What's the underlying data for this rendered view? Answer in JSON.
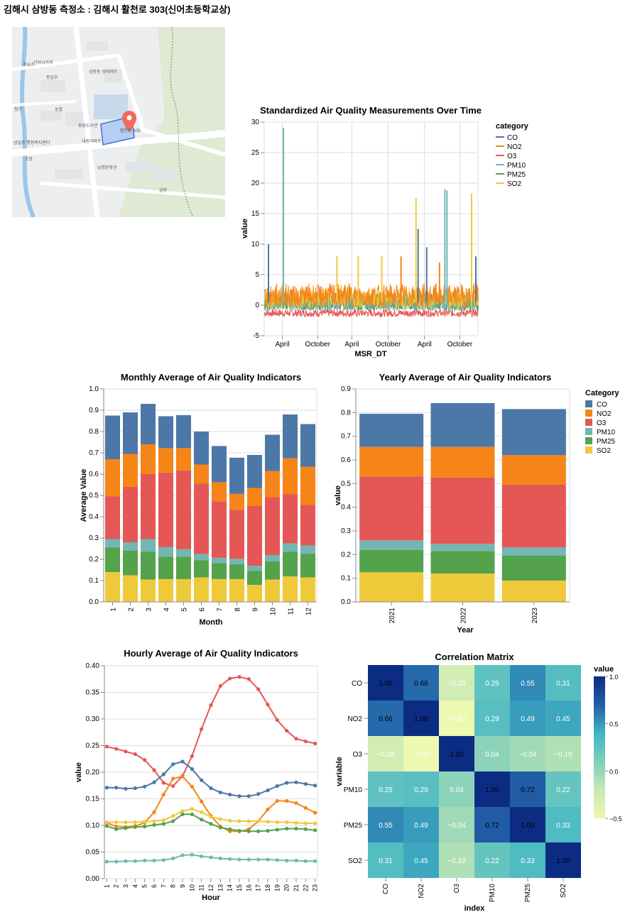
{
  "page": {
    "title": "김해시 삼방동 측정소 : 김해시 활천로 303(신어초등학교상)"
  },
  "map": {
    "labels": [
      "신어시가지",
      "동일부",
      "삼방동 성지마트",
      "참가",
      "농협",
      "동원도서관",
      "주유소",
      "활천로 303",
      "대동아파트",
      "삼일동 행정복지센터",
      "남명문화관",
      "소방",
      "삼방"
    ]
  },
  "colors": {
    "CO": "#4c78a8",
    "NO2": "#f58518",
    "O3": "#e45756",
    "PM10": "#72b7b2",
    "PM25": "#54a24b",
    "SO2": "#eeca3b"
  },
  "chart_data": [
    {
      "id": "timeseries",
      "type": "line",
      "title": "Standardized Air Quality Measurements Over Time",
      "xlabel": "MSR_DT",
      "ylabel": "value",
      "x_ticks": [
        "April",
        "October",
        "April",
        "October",
        "April",
        "October"
      ],
      "y_ticks": [
        -5,
        0,
        5,
        10,
        15,
        20,
        25,
        30
      ],
      "ylim": [
        -5,
        30
      ],
      "legend_title": "category",
      "series_names": [
        "CO",
        "NO2",
        "O3",
        "PM10",
        "PM25",
        "SO2"
      ],
      "spikes": [
        {
          "series": "PM10",
          "x_frac": 0.09,
          "value": 29
        },
        {
          "series": "CO",
          "x_frac": 0.02,
          "value": 10
        },
        {
          "series": "PM10",
          "x_frac": 0.845,
          "value": 19
        },
        {
          "series": "PM10",
          "x_frac": 0.855,
          "value": 18.8
        },
        {
          "series": "SO2",
          "x_frac": 0.71,
          "value": 17.6
        },
        {
          "series": "SO2",
          "x_frac": 0.97,
          "value": 18.3
        },
        {
          "series": "CO",
          "x_frac": 0.76,
          "value": 9.5
        },
        {
          "series": "CO",
          "x_frac": 0.72,
          "value": 12.5
        },
        {
          "series": "SO2",
          "x_frac": 0.34,
          "value": 8
        },
        {
          "series": "SO2",
          "x_frac": 0.44,
          "value": 8
        },
        {
          "series": "SO2",
          "x_frac": 0.55,
          "value": 8
        },
        {
          "series": "NO2",
          "x_frac": 0.64,
          "value": 8
        },
        {
          "series": "NO2",
          "x_frac": 0.82,
          "value": 7
        },
        {
          "series": "CO",
          "x_frac": 0.99,
          "value": 8
        }
      ],
      "legend_position": "right"
    },
    {
      "id": "monthly",
      "type": "bar",
      "stacked": true,
      "title": "Monthly Average of Air Quality Indicators",
      "xlabel": "Month",
      "ylabel": "Average Value",
      "ylim": [
        0,
        1
      ],
      "y_ticks": [
        0,
        0.1,
        0.2,
        0.3,
        0.4,
        0.5,
        0.6,
        0.7,
        0.8,
        0.9,
        1.0
      ],
      "categories": [
        "1",
        "2",
        "3",
        "4",
        "5",
        "6",
        "7",
        "8",
        "9",
        "10",
        "11",
        "12"
      ],
      "series": [
        {
          "name": "SO2",
          "values": [
            0.14,
            0.125,
            0.105,
            0.107,
            0.107,
            0.115,
            0.107,
            0.107,
            0.08,
            0.105,
            0.12,
            0.115
          ]
        },
        {
          "name": "PM25",
          "values": [
            0.115,
            0.115,
            0.13,
            0.105,
            0.105,
            0.08,
            0.075,
            0.07,
            0.065,
            0.085,
            0.115,
            0.11
          ]
        },
        {
          "name": "PM10",
          "values": [
            0.04,
            0.04,
            0.06,
            0.045,
            0.035,
            0.03,
            0.025,
            0.025,
            0.025,
            0.03,
            0.04,
            0.04
          ]
        },
        {
          "name": "O3",
          "values": [
            0.2,
            0.26,
            0.305,
            0.35,
            0.37,
            0.33,
            0.265,
            0.23,
            0.28,
            0.27,
            0.23,
            0.19
          ]
        },
        {
          "name": "NO2",
          "values": [
            0.175,
            0.155,
            0.14,
            0.115,
            0.105,
            0.09,
            0.09,
            0.075,
            0.085,
            0.125,
            0.17,
            0.18
          ]
        },
        {
          "name": "CO",
          "values": [
            0.205,
            0.195,
            0.19,
            0.15,
            0.155,
            0.155,
            0.17,
            0.17,
            0.155,
            0.17,
            0.205,
            0.2
          ]
        }
      ]
    },
    {
      "id": "yearly",
      "type": "bar",
      "stacked": true,
      "title": "Yearly Average of Air Quality Indicators",
      "xlabel": "Year",
      "ylabel": "value",
      "ylim": [
        0,
        0.9
      ],
      "y_ticks": [
        0,
        0.1,
        0.2,
        0.3,
        0.4,
        0.5,
        0.6,
        0.7,
        0.8,
        0.9
      ],
      "categories": [
        "2021",
        "2022",
        "2023"
      ],
      "legend_title": "Category",
      "legend_position": "right",
      "series": [
        {
          "name": "SO2",
          "values": [
            0.125,
            0.12,
            0.09
          ]
        },
        {
          "name": "PM25",
          "values": [
            0.095,
            0.095,
            0.105
          ]
        },
        {
          "name": "PM10",
          "values": [
            0.04,
            0.03,
            0.035
          ]
        },
        {
          "name": "O3",
          "values": [
            0.27,
            0.28,
            0.265
          ]
        },
        {
          "name": "NO2",
          "values": [
            0.125,
            0.13,
            0.125
          ]
        },
        {
          "name": "CO",
          "values": [
            0.14,
            0.185,
            0.195
          ]
        }
      ]
    },
    {
      "id": "hourly",
      "type": "line",
      "title": "Hourly Average of Air Quality Indicators",
      "xlabel": "Hour",
      "ylabel": "value",
      "ylim": [
        0,
        0.4
      ],
      "y_ticks": [
        0,
        0.05,
        0.1,
        0.15,
        0.2,
        0.25,
        0.3,
        0.35,
        0.4
      ],
      "x": [
        1,
        2,
        3,
        4,
        5,
        6,
        7,
        8,
        9,
        10,
        11,
        12,
        13,
        14,
        15,
        16,
        17,
        18,
        19,
        20,
        21,
        22,
        23
      ],
      "series": [
        {
          "name": "O3",
          "values": [
            0.248,
            0.244,
            0.239,
            0.234,
            0.223,
            0.204,
            0.18,
            0.174,
            0.193,
            0.23,
            0.281,
            0.326,
            0.362,
            0.376,
            0.379,
            0.375,
            0.356,
            0.327,
            0.298,
            0.278,
            0.263,
            0.258,
            0.254
          ]
        },
        {
          "name": "CO",
          "values": [
            0.171,
            0.171,
            0.169,
            0.17,
            0.173,
            0.181,
            0.196,
            0.215,
            0.22,
            0.206,
            0.185,
            0.17,
            0.162,
            0.158,
            0.155,
            0.155,
            0.159,
            0.166,
            0.174,
            0.18,
            0.181,
            0.178,
            0.175
          ]
        },
        {
          "name": "NO2",
          "values": [
            0.105,
            0.098,
            0.097,
            0.099,
            0.105,
            0.125,
            0.158,
            0.188,
            0.192,
            0.173,
            0.145,
            0.118,
            0.098,
            0.089,
            0.089,
            0.093,
            0.108,
            0.13,
            0.146,
            0.146,
            0.142,
            0.133,
            0.124
          ]
        },
        {
          "name": "SO2",
          "values": [
            0.106,
            0.106,
            0.106,
            0.106,
            0.107,
            0.108,
            0.11,
            0.118,
            0.127,
            0.131,
            0.125,
            0.116,
            0.112,
            0.109,
            0.108,
            0.108,
            0.108,
            0.107,
            0.106,
            0.106,
            0.105,
            0.104,
            0.104
          ]
        },
        {
          "name": "PM25",
          "values": [
            0.099,
            0.093,
            0.095,
            0.097,
            0.098,
            0.101,
            0.103,
            0.108,
            0.121,
            0.121,
            0.111,
            0.103,
            0.096,
            0.093,
            0.09,
            0.089,
            0.089,
            0.09,
            0.092,
            0.094,
            0.094,
            0.093,
            0.091
          ]
        },
        {
          "name": "PM10",
          "values": [
            0.032,
            0.032,
            0.033,
            0.033,
            0.034,
            0.034,
            0.035,
            0.038,
            0.044,
            0.045,
            0.042,
            0.04,
            0.038,
            0.037,
            0.036,
            0.036,
            0.036,
            0.036,
            0.035,
            0.034,
            0.034,
            0.033,
            0.033
          ]
        }
      ]
    },
    {
      "id": "correlation",
      "type": "heatmap",
      "title": "Correlation Matrix",
      "xlabel": "index",
      "ylabel": "variable",
      "labels": [
        "CO",
        "NO2",
        "O3",
        "PM10",
        "PM25",
        "SO2"
      ],
      "matrix": [
        [
          1.0,
          0.66,
          -0.28,
          0.25,
          0.55,
          0.31
        ],
        [
          0.66,
          1.0,
          -0.5,
          0.29,
          0.49,
          0.45
        ],
        [
          -0.28,
          -0.5,
          1.0,
          0.04,
          -0.04,
          -0.1
        ],
        [
          0.25,
          0.29,
          0.04,
          1.0,
          0.72,
          0.22
        ],
        [
          0.55,
          0.49,
          -0.04,
          0.72,
          1.0,
          0.33
        ],
        [
          0.31,
          0.45,
          -0.1,
          0.22,
          0.33,
          1.0
        ]
      ],
      "cell_labels": [
        [
          "1.00",
          "0.66",
          "−0.28",
          "0.25",
          "0.55",
          "0.31"
        ],
        [
          "0.66",
          "1.00",
          "−0.50",
          "0.29",
          "0.49",
          "0.45"
        ],
        [
          "−0.28",
          "−0.50",
          "1.00",
          "0.04",
          "−0.04",
          "−0.10"
        ],
        [
          "0.25",
          "0.29",
          "0.04",
          "1.00",
          "0.72",
          "0.22"
        ],
        [
          "0.55",
          "0.49",
          "−0.04",
          "0.72",
          "1.00",
          "0.33"
        ],
        [
          "0.31",
          "0.45",
          "−0.10",
          "0.22",
          "0.33",
          "1.00"
        ]
      ],
      "legend_title": "value",
      "legend_ticks": [
        "1.0",
        "0.5",
        "0.0",
        "−0.5"
      ],
      "color_range": [
        -0.5,
        1
      ]
    }
  ]
}
